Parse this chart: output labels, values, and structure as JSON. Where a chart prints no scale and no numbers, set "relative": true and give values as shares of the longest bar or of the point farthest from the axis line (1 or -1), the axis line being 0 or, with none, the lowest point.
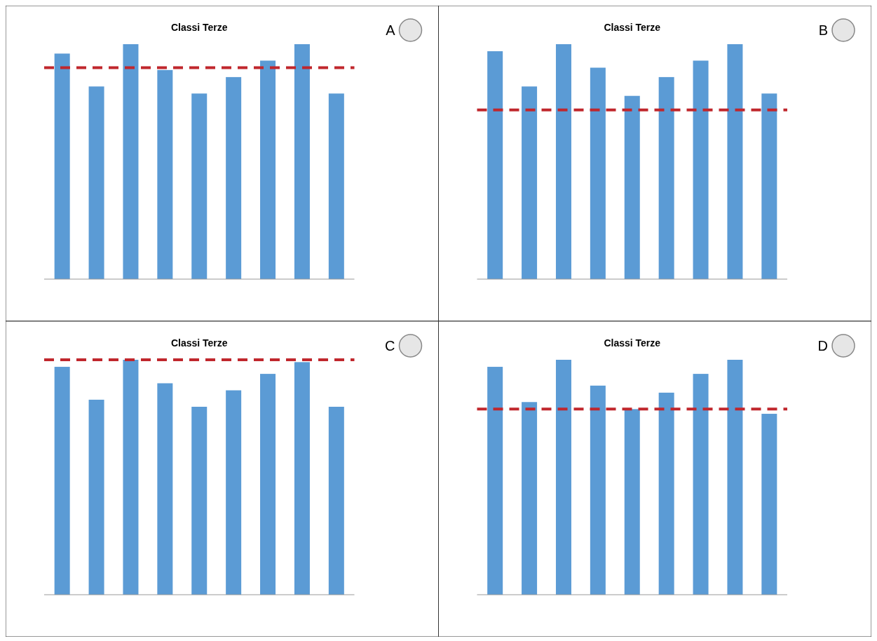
{
  "chart_data": [
    {
      "type": "bar",
      "title": "Classi Terze",
      "relative": true,
      "categories": [
        null,
        null,
        null,
        null,
        null,
        null,
        null,
        null,
        null
      ],
      "values": [
        0.96,
        0.82,
        1,
        0.89,
        0.79,
        0.86,
        0.93,
        1,
        0.79
      ],
      "color": "#5b9bd5",
      "ref_lines": [
        {
          "axis": "y",
          "value": 0.9,
          "color": "#c0272d",
          "line_style": "dashed"
        }
      ],
      "annotations": [
        "A"
      ]
    },
    {
      "type": "bar",
      "title": "Classi Terze",
      "relative": true,
      "categories": [
        null,
        null,
        null,
        null,
        null,
        null,
        null,
        null,
        null
      ],
      "values": [
        0.97,
        0.82,
        1,
        0.9,
        0.78,
        0.86,
        0.93,
        1,
        0.79
      ],
      "color": "#5b9bd5",
      "ref_lines": [
        {
          "axis": "y",
          "value": 0.72,
          "color": "#c0272d",
          "line_style": "dashed"
        }
      ],
      "annotations": [
        "B"
      ]
    },
    {
      "type": "bar",
      "title": "Classi Terze",
      "relative": true,
      "categories": [
        null,
        null,
        null,
        null,
        null,
        null,
        null,
        null,
        null
      ],
      "values": [
        0.97,
        0.83,
        1,
        0.9,
        0.8,
        0.87,
        0.94,
        0.99,
        0.8
      ],
      "color": "#5b9bd5",
      "ref_lines": [
        {
          "axis": "y",
          "value": 1,
          "color": "#c0272d",
          "line_style": "dashed"
        }
      ],
      "annotations": [
        "C"
      ]
    },
    {
      "type": "bar",
      "title": "Classi Terze",
      "relative": true,
      "categories": [
        null,
        null,
        null,
        null,
        null,
        null,
        null,
        null,
        null
      ],
      "values": [
        0.97,
        0.82,
        1,
        0.89,
        0.79,
        0.86,
        0.94,
        1,
        0.77
      ],
      "color": "#5b9bd5",
      "ref_lines": [
        {
          "axis": "y",
          "value": 0.79,
          "color": "#c0272d",
          "line_style": "dashed"
        }
      ],
      "annotations": [
        "D"
      ]
    }
  ]
}
